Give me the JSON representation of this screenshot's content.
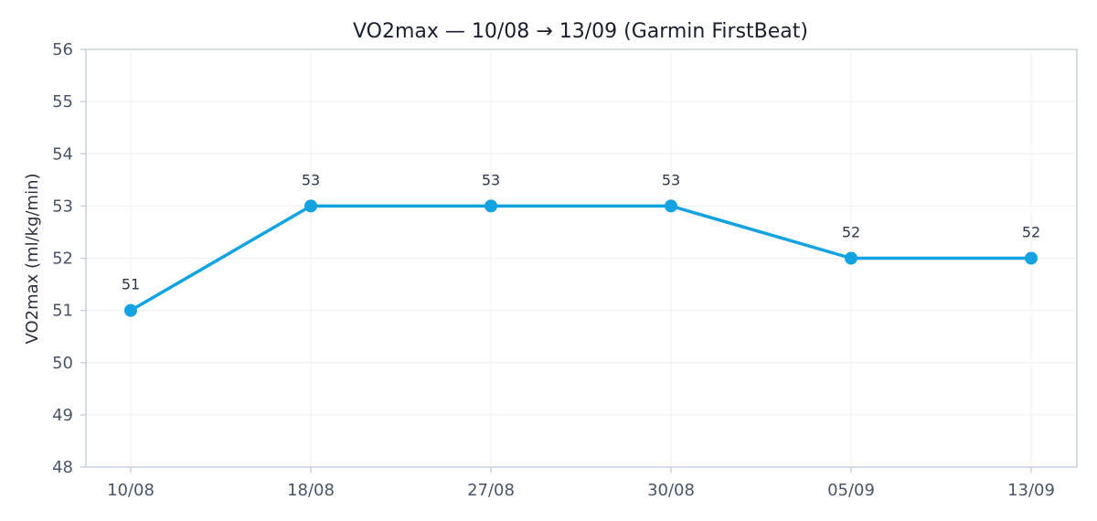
{
  "chart_data": {
    "type": "line",
    "title": "VO2max — 10/08 → 13/09 (Garmin FirstBeat)",
    "xlabel": "",
    "ylabel": "VO2max (ml/kg/min)",
    "categories": [
      "10/08",
      "18/08",
      "27/08",
      "30/08",
      "05/09",
      "13/09"
    ],
    "series": [
      {
        "values": [
          51,
          53,
          53,
          53,
          52,
          52
        ]
      }
    ],
    "data_labels": [
      "51",
      "53",
      "53",
      "53",
      "52",
      "52"
    ],
    "ylim": [
      48,
      56
    ],
    "yticks": [
      48,
      49,
      50,
      51,
      52,
      53,
      54,
      55,
      56
    ],
    "grid": true,
    "line_color": "#14a3e0"
  }
}
